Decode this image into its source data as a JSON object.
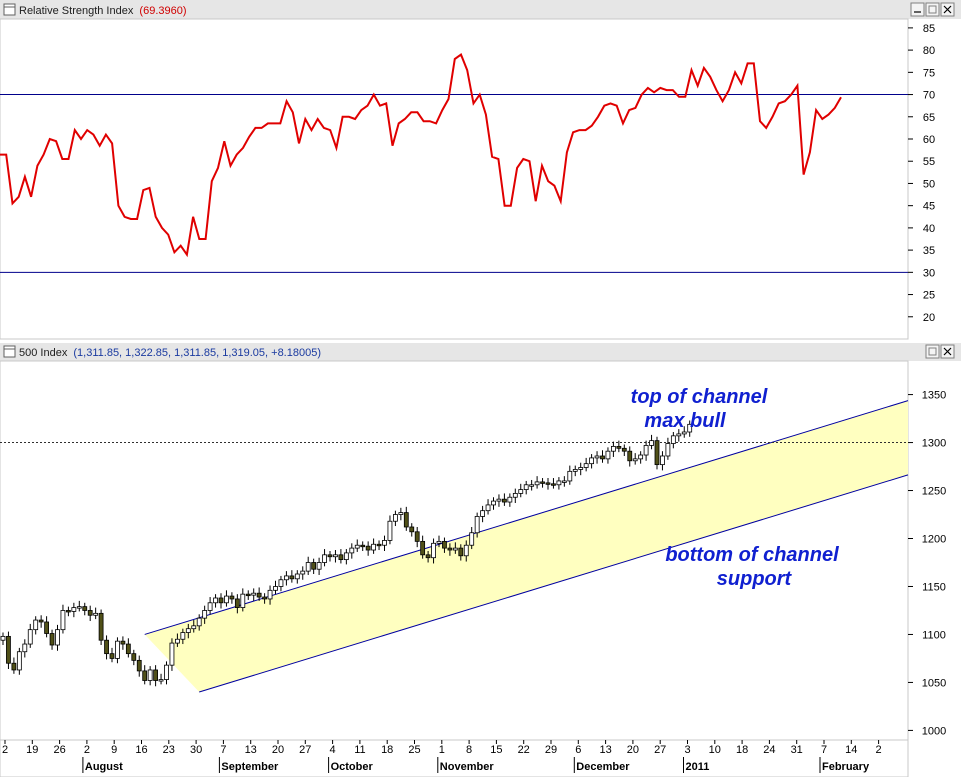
{
  "rsi_panel": {
    "title": "Relative Strength Index",
    "value": "(69.3960)",
    "buttons": [
      "minimize",
      "restore",
      "close"
    ]
  },
  "price_panel": {
    "title": "500 Index",
    "ohlc": "(1,311.85, 1,322.85, 1,311.85, 1,319.05, +8.18005)",
    "buttons": [
      "restore",
      "close"
    ]
  },
  "annotations": {
    "top1": "top of channel",
    "top2": "max bull",
    "bottom1": "bottom of channel",
    "bottom2": "support"
  },
  "colors": {
    "rsi_line": "#e00000",
    "ref_lines": "#00008b",
    "channel_fill": "#ffffc0",
    "channel_edge": "#0000a0",
    "annotation": "#1020d0",
    "value_text": "#d00000",
    "ohlc_text": "#1a3aa0",
    "candle_up": "#ffffff",
    "candle_down": "#505018"
  },
  "chart_data": [
    {
      "type": "line",
      "title": "Relative Strength Index",
      "current_value": 69.396,
      "ylim": [
        15,
        87
      ],
      "y_ticks": [
        20,
        25,
        30,
        35,
        40,
        45,
        50,
        55,
        60,
        65,
        70,
        75,
        80,
        85
      ],
      "reference_lines": [
        30,
        70
      ],
      "series": [
        {
          "name": "Relative Strength Index",
          "values": [
            56.5,
            56.5,
            45.5,
            47,
            51.5,
            47,
            54,
            56.5,
            60,
            59.5,
            55.5,
            55.5,
            62,
            60,
            62,
            61,
            58.5,
            61,
            59,
            45,
            42.5,
            42,
            42,
            48.5,
            49,
            42.5,
            40,
            38.5,
            34.5,
            36,
            34,
            42.5,
            37.5,
            37.5,
            50.5,
            53.5,
            59.5,
            54,
            56.5,
            58,
            60.5,
            62.5,
            62.5,
            63.5,
            63.5,
            63.5,
            68.5,
            66,
            59,
            64.5,
            62,
            64.5,
            62.5,
            62,
            58,
            65,
            65,
            64.5,
            66.5,
            67.5,
            70,
            67.5,
            68,
            58.5,
            63.5,
            64.5,
            66,
            66,
            64,
            64,
            63.5,
            66.5,
            69,
            78,
            79,
            75.5,
            68,
            70,
            65.5,
            56,
            55.5,
            45,
            45,
            53.5,
            55.5,
            55,
            46,
            54,
            50.5,
            49.5,
            46,
            57,
            61.5,
            62,
            62,
            63,
            65,
            67.5,
            68,
            67.5,
            63.5,
            66.5,
            67,
            70,
            71.5,
            70.5,
            71.5,
            71,
            71,
            69.5,
            69.5,
            75.5,
            72,
            76,
            74,
            71,
            68.5,
            71,
            75,
            72.5,
            77,
            77,
            64,
            62.5,
            65,
            68,
            68.5,
            70,
            72,
            52,
            57,
            66.5,
            64.5,
            65.5,
            67,
            69.4
          ]
        }
      ]
    },
    {
      "type": "candlestick",
      "title": "500 Index",
      "last": {
        "open": 1311.85,
        "high": 1322.85,
        "low": 1311.85,
        "close": 1319.05,
        "change": 8.18005
      },
      "ylim": [
        990,
        1385
      ],
      "y_ticks": [
        1000,
        1050,
        1100,
        1150,
        1200,
        1250,
        1300,
        1350
      ],
      "reference_line": 1300,
      "x_tick_labels": [
        "2",
        "19",
        "26",
        "2",
        "9",
        "16",
        "23",
        "30",
        "7",
        "13",
        "20",
        "27",
        "4",
        "11",
        "18",
        "25",
        "1",
        "8",
        "15",
        "22",
        "29",
        "6",
        "13",
        "20",
        "27",
        "3",
        "10",
        "18",
        "24",
        "31",
        "7",
        "14",
        "2"
      ],
      "month_labels": [
        "August",
        "September",
        "October",
        "November",
        "December",
        "2011",
        "February"
      ],
      "close_values": [
        1098,
        1070,
        1063,
        1082,
        1090,
        1105,
        1115,
        1113,
        1101,
        1089,
        1105,
        1125,
        1124,
        1128,
        1129,
        1125,
        1120,
        1122,
        1094,
        1080,
        1075,
        1093,
        1090,
        1080,
        1073,
        1062,
        1052,
        1063,
        1052,
        1053,
        1068,
        1091,
        1095,
        1102,
        1106,
        1109,
        1117,
        1125,
        1133,
        1138,
        1133,
        1140,
        1137,
        1128,
        1142,
        1141,
        1143,
        1139,
        1137,
        1146,
        1150,
        1157,
        1161,
        1158,
        1163,
        1166,
        1175,
        1168,
        1175,
        1183,
        1181,
        1183,
        1178,
        1185,
        1190,
        1193,
        1192,
        1188,
        1194,
        1193,
        1198,
        1218,
        1225,
        1227,
        1212,
        1207,
        1197,
        1183,
        1180,
        1195,
        1197,
        1190,
        1188,
        1190,
        1182,
        1193,
        1206,
        1223,
        1229,
        1235,
        1239,
        1241,
        1238,
        1243,
        1247,
        1251,
        1256,
        1256,
        1259,
        1258,
        1257,
        1256,
        1260,
        1260,
        1270,
        1272,
        1274,
        1278,
        1284,
        1286,
        1283,
        1291,
        1296,
        1294,
        1291,
        1281,
        1283,
        1287,
        1297,
        1302,
        1277,
        1286,
        1299,
        1307,
        1309,
        1311,
        1319
      ],
      "channel": {
        "lower_start": {
          "date": "Aug 31",
          "value": 1040
        },
        "upper_start": {
          "date": "Aug 17",
          "value": 1100
        },
        "slope_per_day": 1.74
      }
    }
  ]
}
